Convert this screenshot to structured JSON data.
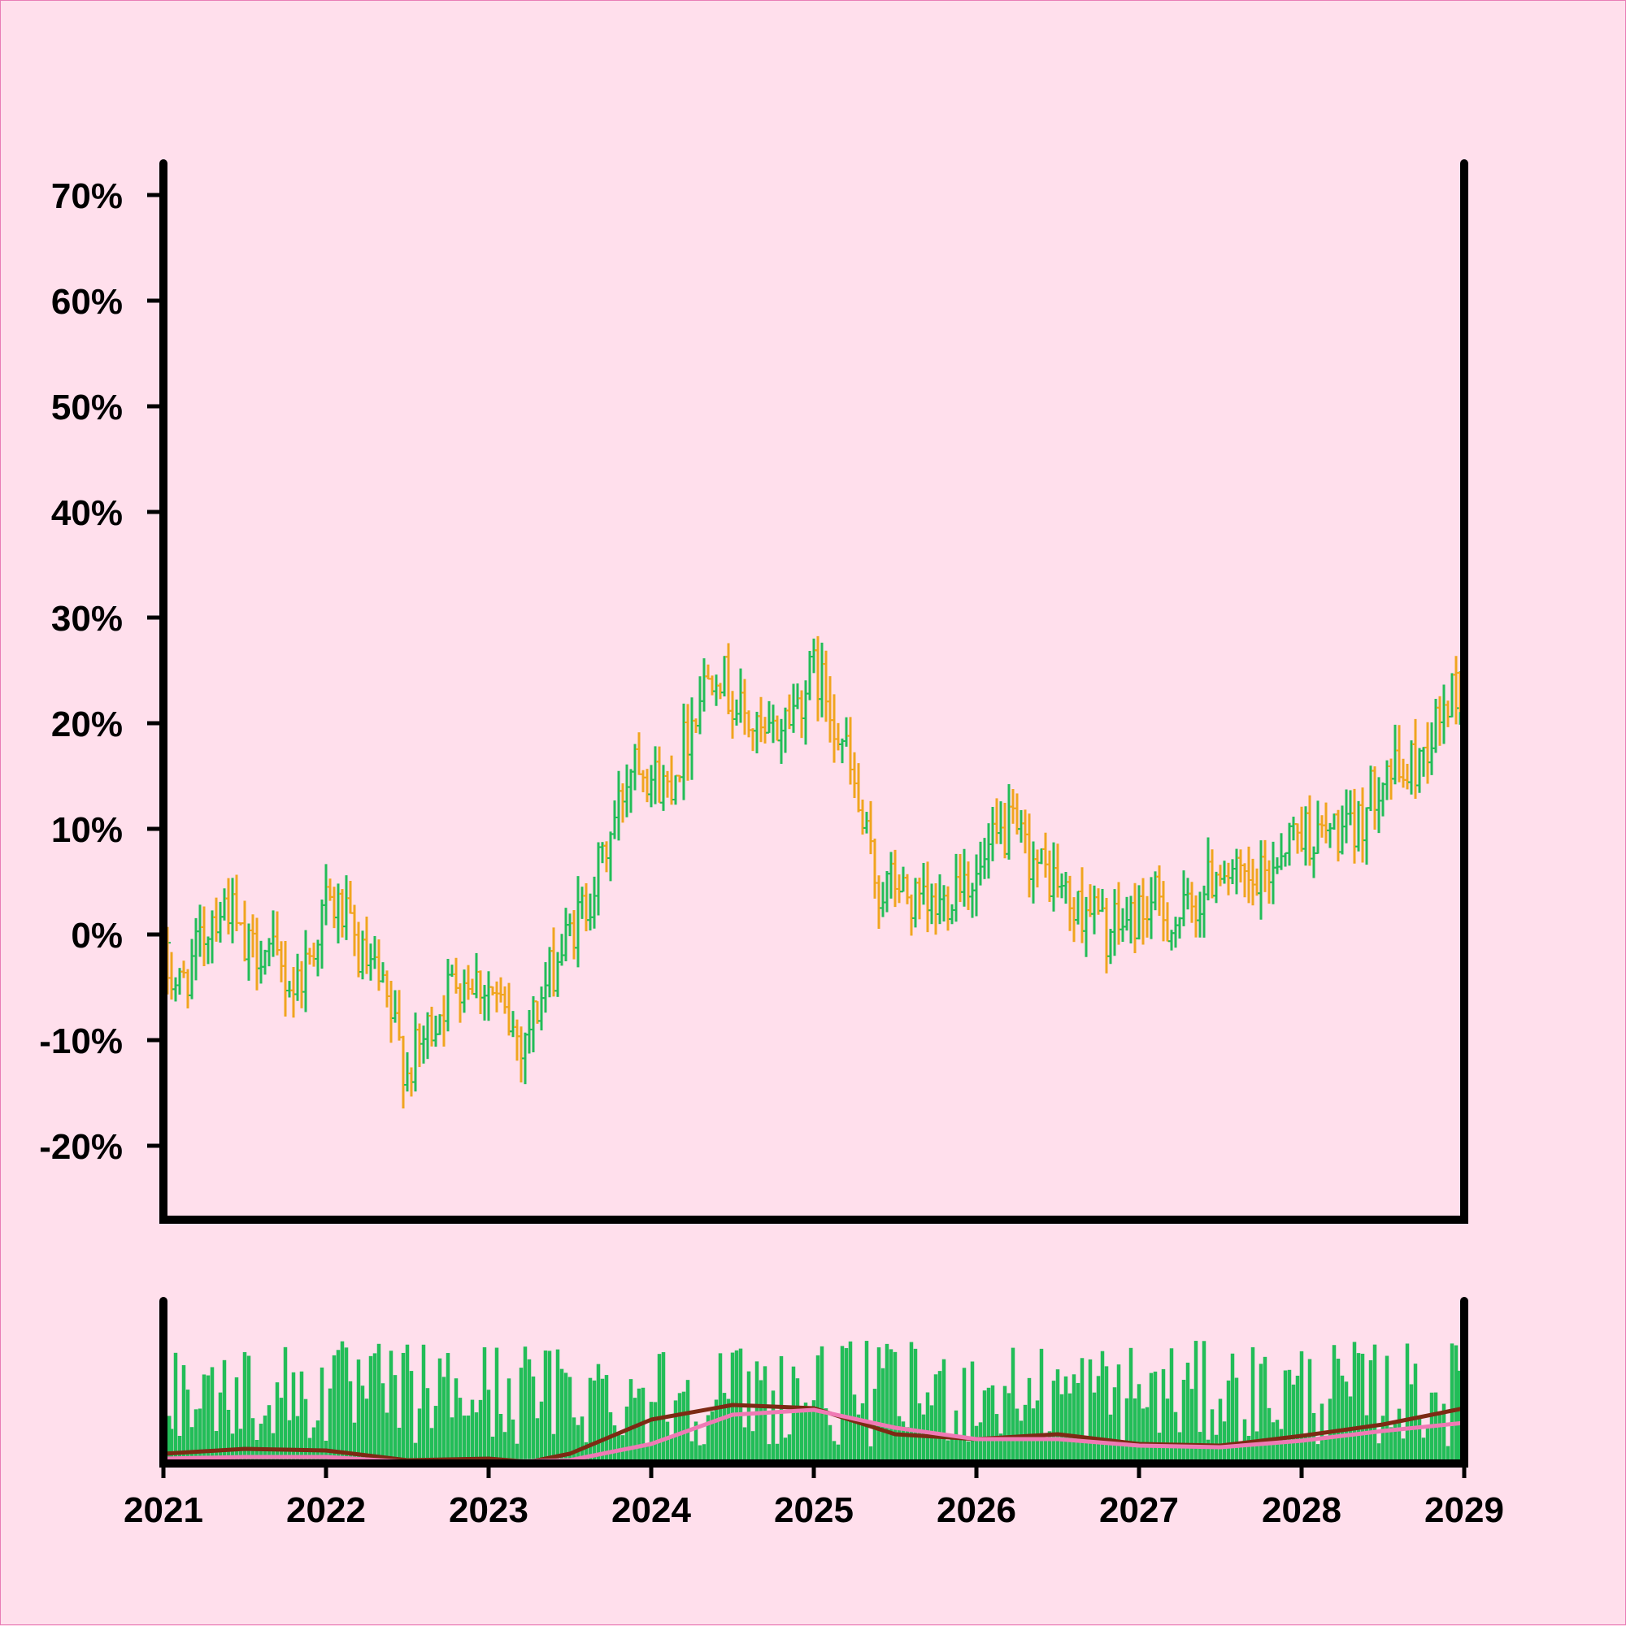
{
  "colors": {
    "background": "#FFDFEC",
    "up": "#22BD58",
    "down": "#F0A51F",
    "volume": "#22BD58",
    "ma_fast": "#7D2A14",
    "ma_slow": "#F07AB5",
    "axis": "#000000"
  },
  "chart_data": [
    {
      "type": "ohlc",
      "ylim": [
        -0.27,
        0.73
      ],
      "yticks": [
        -0.2,
        -0.1,
        0,
        0.1,
        0.2,
        0.3,
        0.4,
        0.5,
        0.6,
        0.7
      ],
      "ytick_labels": [
        "-20%",
        "-10%",
        "0%",
        "10%",
        "20%",
        "30%",
        "40%",
        "50%",
        "60%",
        "70%"
      ],
      "grid": false,
      "xlim": [
        2021.0,
        2029.0
      ],
      "bar_interval_years": 0.025,
      "path_points": [
        [
          2021.0,
          -0.03
        ],
        [
          2021.1,
          -0.05
        ],
        [
          2021.2,
          -0.02
        ],
        [
          2021.3,
          0.02
        ],
        [
          2021.4,
          0.03
        ],
        [
          2021.5,
          -0.02
        ],
        [
          2021.6,
          -0.01
        ],
        [
          2021.7,
          -0.03
        ],
        [
          2021.8,
          -0.05
        ],
        [
          2021.9,
          -0.02
        ],
        [
          2022.0,
          0.03
        ],
        [
          2022.1,
          0.02
        ],
        [
          2022.2,
          -0.02
        ],
        [
          2022.3,
          -0.04
        ],
        [
          2022.4,
          -0.08
        ],
        [
          2022.5,
          -0.13
        ],
        [
          2022.6,
          -0.1
        ],
        [
          2022.7,
          -0.07
        ],
        [
          2022.8,
          -0.04
        ],
        [
          2022.9,
          -0.04
        ],
        [
          2023.0,
          -0.05
        ],
        [
          2023.1,
          -0.08
        ],
        [
          2023.2,
          -0.1
        ],
        [
          2023.3,
          -0.07
        ],
        [
          2023.4,
          -0.03
        ],
        [
          2023.5,
          0.0
        ],
        [
          2023.6,
          0.03
        ],
        [
          2023.7,
          0.07
        ],
        [
          2023.8,
          0.12
        ],
        [
          2023.9,
          0.18
        ],
        [
          2024.0,
          0.15
        ],
        [
          2024.1,
          0.14
        ],
        [
          2024.2,
          0.18
        ],
        [
          2024.3,
          0.23
        ],
        [
          2024.4,
          0.26
        ],
        [
          2024.5,
          0.22
        ],
        [
          2024.6,
          0.2
        ],
        [
          2024.7,
          0.18
        ],
        [
          2024.8,
          0.2
        ],
        [
          2024.9,
          0.22
        ],
        [
          2025.0,
          0.25
        ],
        [
          2025.1,
          0.22
        ],
        [
          2025.2,
          0.17
        ],
        [
          2025.3,
          0.1
        ],
        [
          2025.4,
          0.04
        ],
        [
          2025.5,
          0.05
        ],
        [
          2025.6,
          0.03
        ],
        [
          2025.7,
          0.02
        ],
        [
          2025.8,
          0.03
        ],
        [
          2025.9,
          0.06
        ],
        [
          2026.0,
          0.05
        ],
        [
          2026.1,
          0.08
        ],
        [
          2026.2,
          0.1
        ],
        [
          2026.3,
          0.08
        ],
        [
          2026.4,
          0.06
        ],
        [
          2026.5,
          0.05
        ],
        [
          2026.6,
          0.02
        ],
        [
          2026.7,
          0.03
        ],
        [
          2026.8,
          0.0
        ],
        [
          2026.9,
          0.01
        ],
        [
          2027.0,
          0.02
        ],
        [
          2027.1,
          0.03
        ],
        [
          2027.2,
          0.01
        ],
        [
          2027.3,
          0.02
        ],
        [
          2027.4,
          0.04
        ],
        [
          2027.5,
          0.07
        ],
        [
          2027.6,
          0.05
        ],
        [
          2027.7,
          0.04
        ],
        [
          2027.8,
          0.06
        ],
        [
          2027.9,
          0.09
        ],
        [
          2028.0,
          0.1
        ],
        [
          2028.1,
          0.09
        ],
        [
          2028.2,
          0.1
        ],
        [
          2028.3,
          0.09
        ],
        [
          2028.4,
          0.12
        ],
        [
          2028.5,
          0.16
        ],
        [
          2028.6,
          0.15
        ],
        [
          2028.7,
          0.16
        ],
        [
          2028.8,
          0.19
        ],
        [
          2028.9,
          0.22
        ],
        [
          2029.0,
          0.24
        ]
      ]
    },
    {
      "type": "bar",
      "subtype": "volume",
      "ylim": [
        0,
        1
      ],
      "series": [
        {
          "label": "",
          "role": "volume",
          "mean_level": 0.42
        },
        {
          "label": "",
          "role": "moving-average-fast",
          "x": [
            2021.0,
            2021.5,
            2022.0,
            2022.5,
            2023.0,
            2023.25,
            2023.5,
            2024.0,
            2024.5,
            2025.0,
            2025.5,
            2026.0,
            2026.5,
            2027.0,
            2027.5,
            2028.0,
            2028.5,
            2029.0
          ],
          "values": [
            0.06,
            0.09,
            0.08,
            0.02,
            0.03,
            0.01,
            0.06,
            0.27,
            0.36,
            0.34,
            0.18,
            0.15,
            0.18,
            0.12,
            0.11,
            0.17,
            0.24,
            0.34
          ]
        },
        {
          "label": "",
          "role": "moving-average-slow",
          "x": [
            2021.0,
            2021.5,
            2022.0,
            2022.5,
            2023.0,
            2023.5,
            2024.0,
            2024.5,
            2025.0,
            2025.5,
            2026.0,
            2026.5,
            2027.0,
            2027.5,
            2028.0,
            2028.5,
            2029.0
          ],
          "values": [
            0.03,
            0.04,
            0.04,
            0.01,
            0.01,
            0.02,
            0.12,
            0.3,
            0.33,
            0.22,
            0.15,
            0.15,
            0.11,
            0.1,
            0.14,
            0.2,
            0.25
          ]
        }
      ]
    }
  ],
  "x_axis": {
    "ticks": [
      2021,
      2022,
      2023,
      2024,
      2025,
      2026,
      2027,
      2028,
      2029
    ],
    "tick_labels": [
      "2021",
      "2022",
      "2023",
      "2024",
      "2025",
      "2026",
      "2027",
      "2028",
      "2029"
    ]
  }
}
